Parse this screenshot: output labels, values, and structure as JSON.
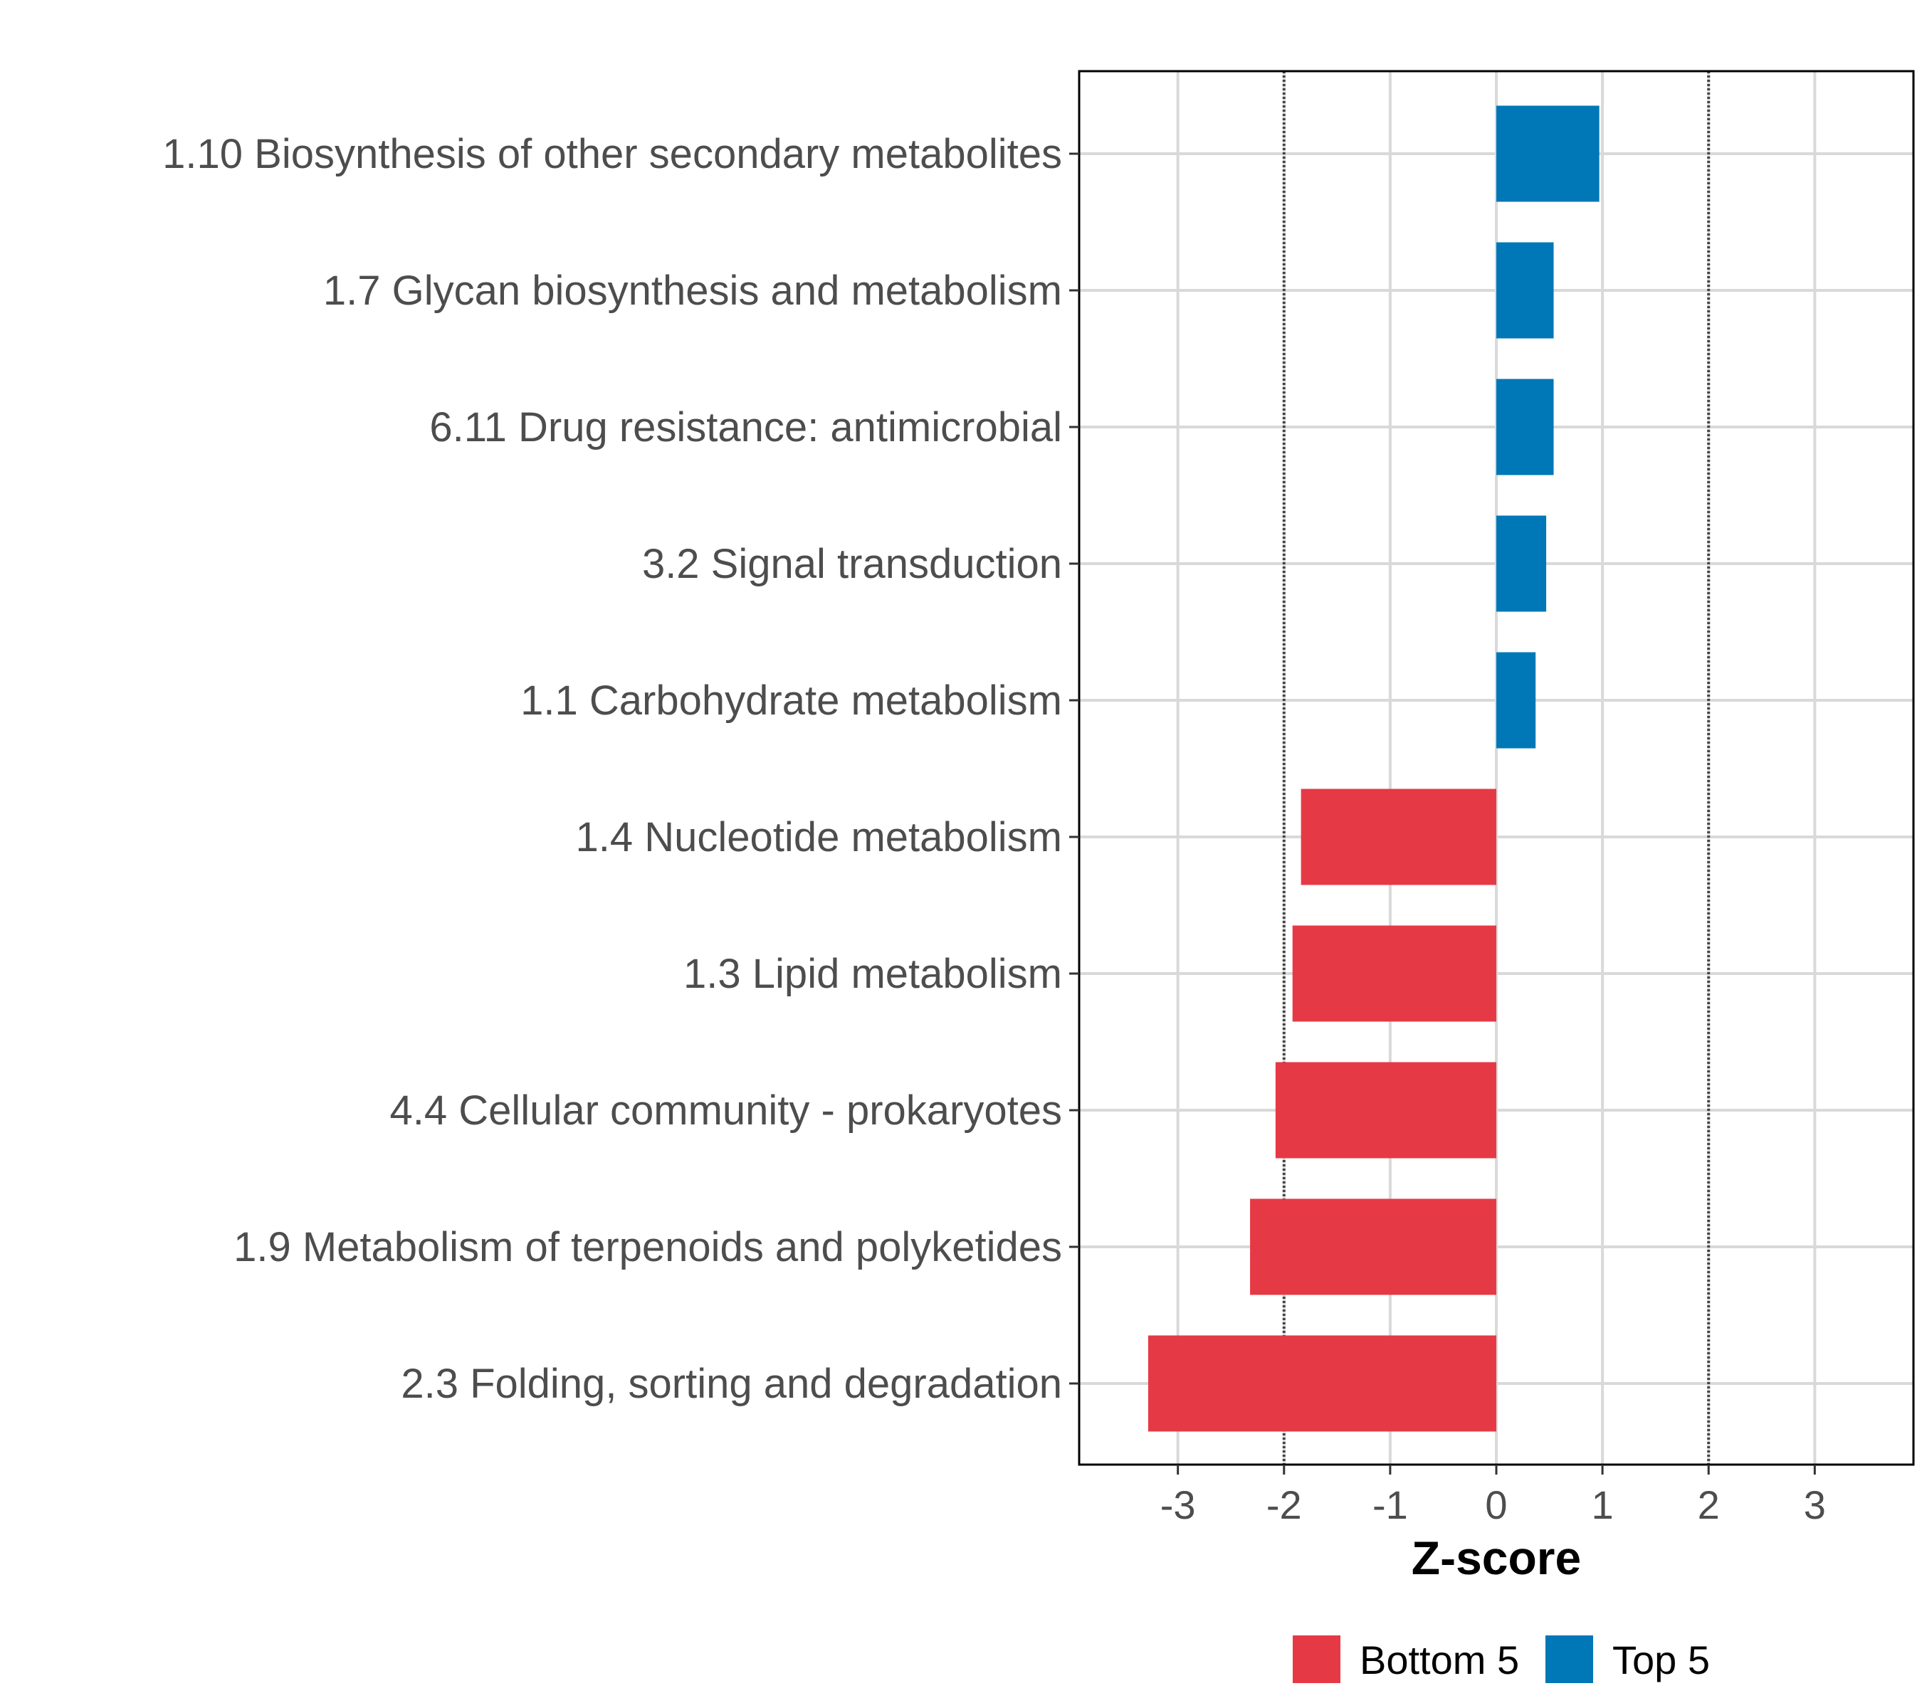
{
  "chart_data": {
    "type": "bar",
    "orientation": "horizontal",
    "title": "",
    "xlabel": "Z-score",
    "ylabel": "",
    "xlim": [
      -3.93,
      3.93
    ],
    "xticks": [
      -3,
      -2,
      -1,
      0,
      1,
      2,
      3
    ],
    "xtick_labels": [
      "-3",
      "-2",
      "-1",
      "0",
      "1",
      "2",
      "3"
    ],
    "reference_lines": [
      -2,
      2
    ],
    "grid": true,
    "legend_position": "bottom",
    "categories": [
      "1.10 Biosynthesis of other secondary metabolites",
      "1.7 Glycan biosynthesis and metabolism",
      "6.11 Drug resistance: antimicrobial",
      "3.2 Signal transduction",
      "1.1 Carbohydrate metabolism",
      "1.4 Nucleotide metabolism",
      "1.3 Lipid metabolism",
      "4.4 Cellular community - prokaryotes",
      "1.9 Metabolism of terpenoids and polyketides",
      "2.3 Folding, sorting and degradation"
    ],
    "values": [
      0.97,
      0.54,
      0.54,
      0.47,
      0.37,
      -1.84,
      -1.92,
      -2.08,
      -2.32,
      -3.28
    ],
    "groups": [
      "Top 5",
      "Top 5",
      "Top 5",
      "Top 5",
      "Top 5",
      "Bottom 5",
      "Bottom 5",
      "Bottom 5",
      "Bottom 5",
      "Bottom 5"
    ],
    "legend": [
      {
        "label": "Bottom 5",
        "color": "#E63946"
      },
      {
        "label": "Top 5",
        "color": "#0077B6"
      }
    ]
  }
}
